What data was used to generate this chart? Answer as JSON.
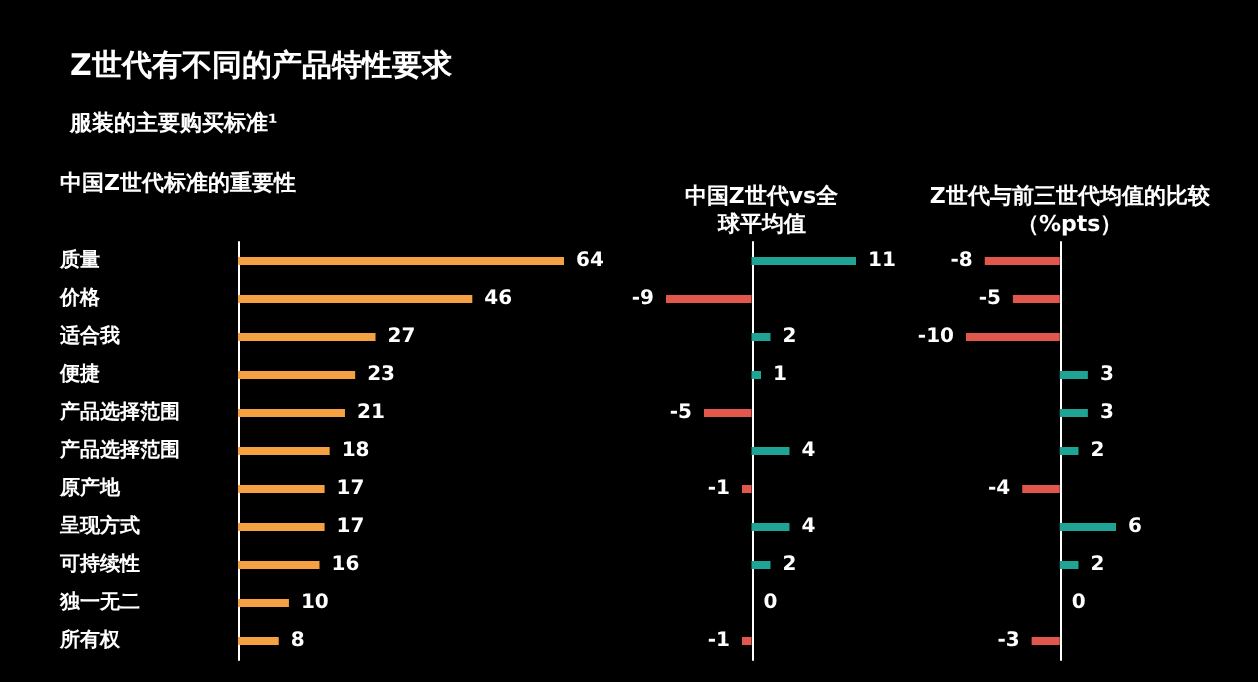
{
  "chart_data": [
    {
      "type": "bar",
      "orientation": "horizontal",
      "title": "Z世代有不同的产品特性要求",
      "subtitle": "服装的主要购买标准¹",
      "annotations": [
        "中国Z世代标准的重要性"
      ],
      "categories": [
        "质量",
        "价格",
        "适合我",
        "便捷",
        "产品选择范围",
        "产品选择范围",
        "原产地",
        "呈现方式",
        "可持续性",
        "独一无二",
        "所有权"
      ],
      "values": [
        64,
        46,
        27,
        23,
        21,
        18,
        17,
        17,
        16,
        10,
        8
      ],
      "color": "#f5a042",
      "data_labels": true
    },
    {
      "type": "bar",
      "orientation": "horizontal",
      "title": "中国Z世代vs全球平均值",
      "categories": [
        null,
        null,
        null,
        null,
        null,
        null,
        null,
        null,
        null,
        null,
        null
      ],
      "values": [
        11,
        -9,
        2,
        1,
        -5,
        4,
        -1,
        4,
        2,
        0,
        -1
      ],
      "colors": [
        "#1fa394",
        "#e2574c",
        "#1fa394",
        "#1fa394",
        "#e2574c",
        "#1fa394",
        "#e2574c",
        "#1fa394",
        "#1fa394",
        "#1fa394",
        "#e2574c"
      ],
      "data_labels": true
    },
    {
      "type": "bar",
      "orientation": "horizontal",
      "title": "Z世代与前三世代均值的比较（%pts）",
      "categories": [
        null,
        null,
        null,
        null,
        null,
        null,
        null,
        null,
        null,
        null,
        null
      ],
      "values": [
        -8,
        -5,
        -10,
        3,
        3,
        2,
        -4,
        6,
        2,
        0,
        -3
      ],
      "colors": [
        "#e2574c",
        "#e2574c",
        "#e2574c",
        "#1fa394",
        "#1fa394",
        "#1fa394",
        "#e2574c",
        "#1fa394",
        "#1fa394",
        "#1fa394",
        "#e2574c"
      ],
      "data_labels": true
    }
  ]
}
